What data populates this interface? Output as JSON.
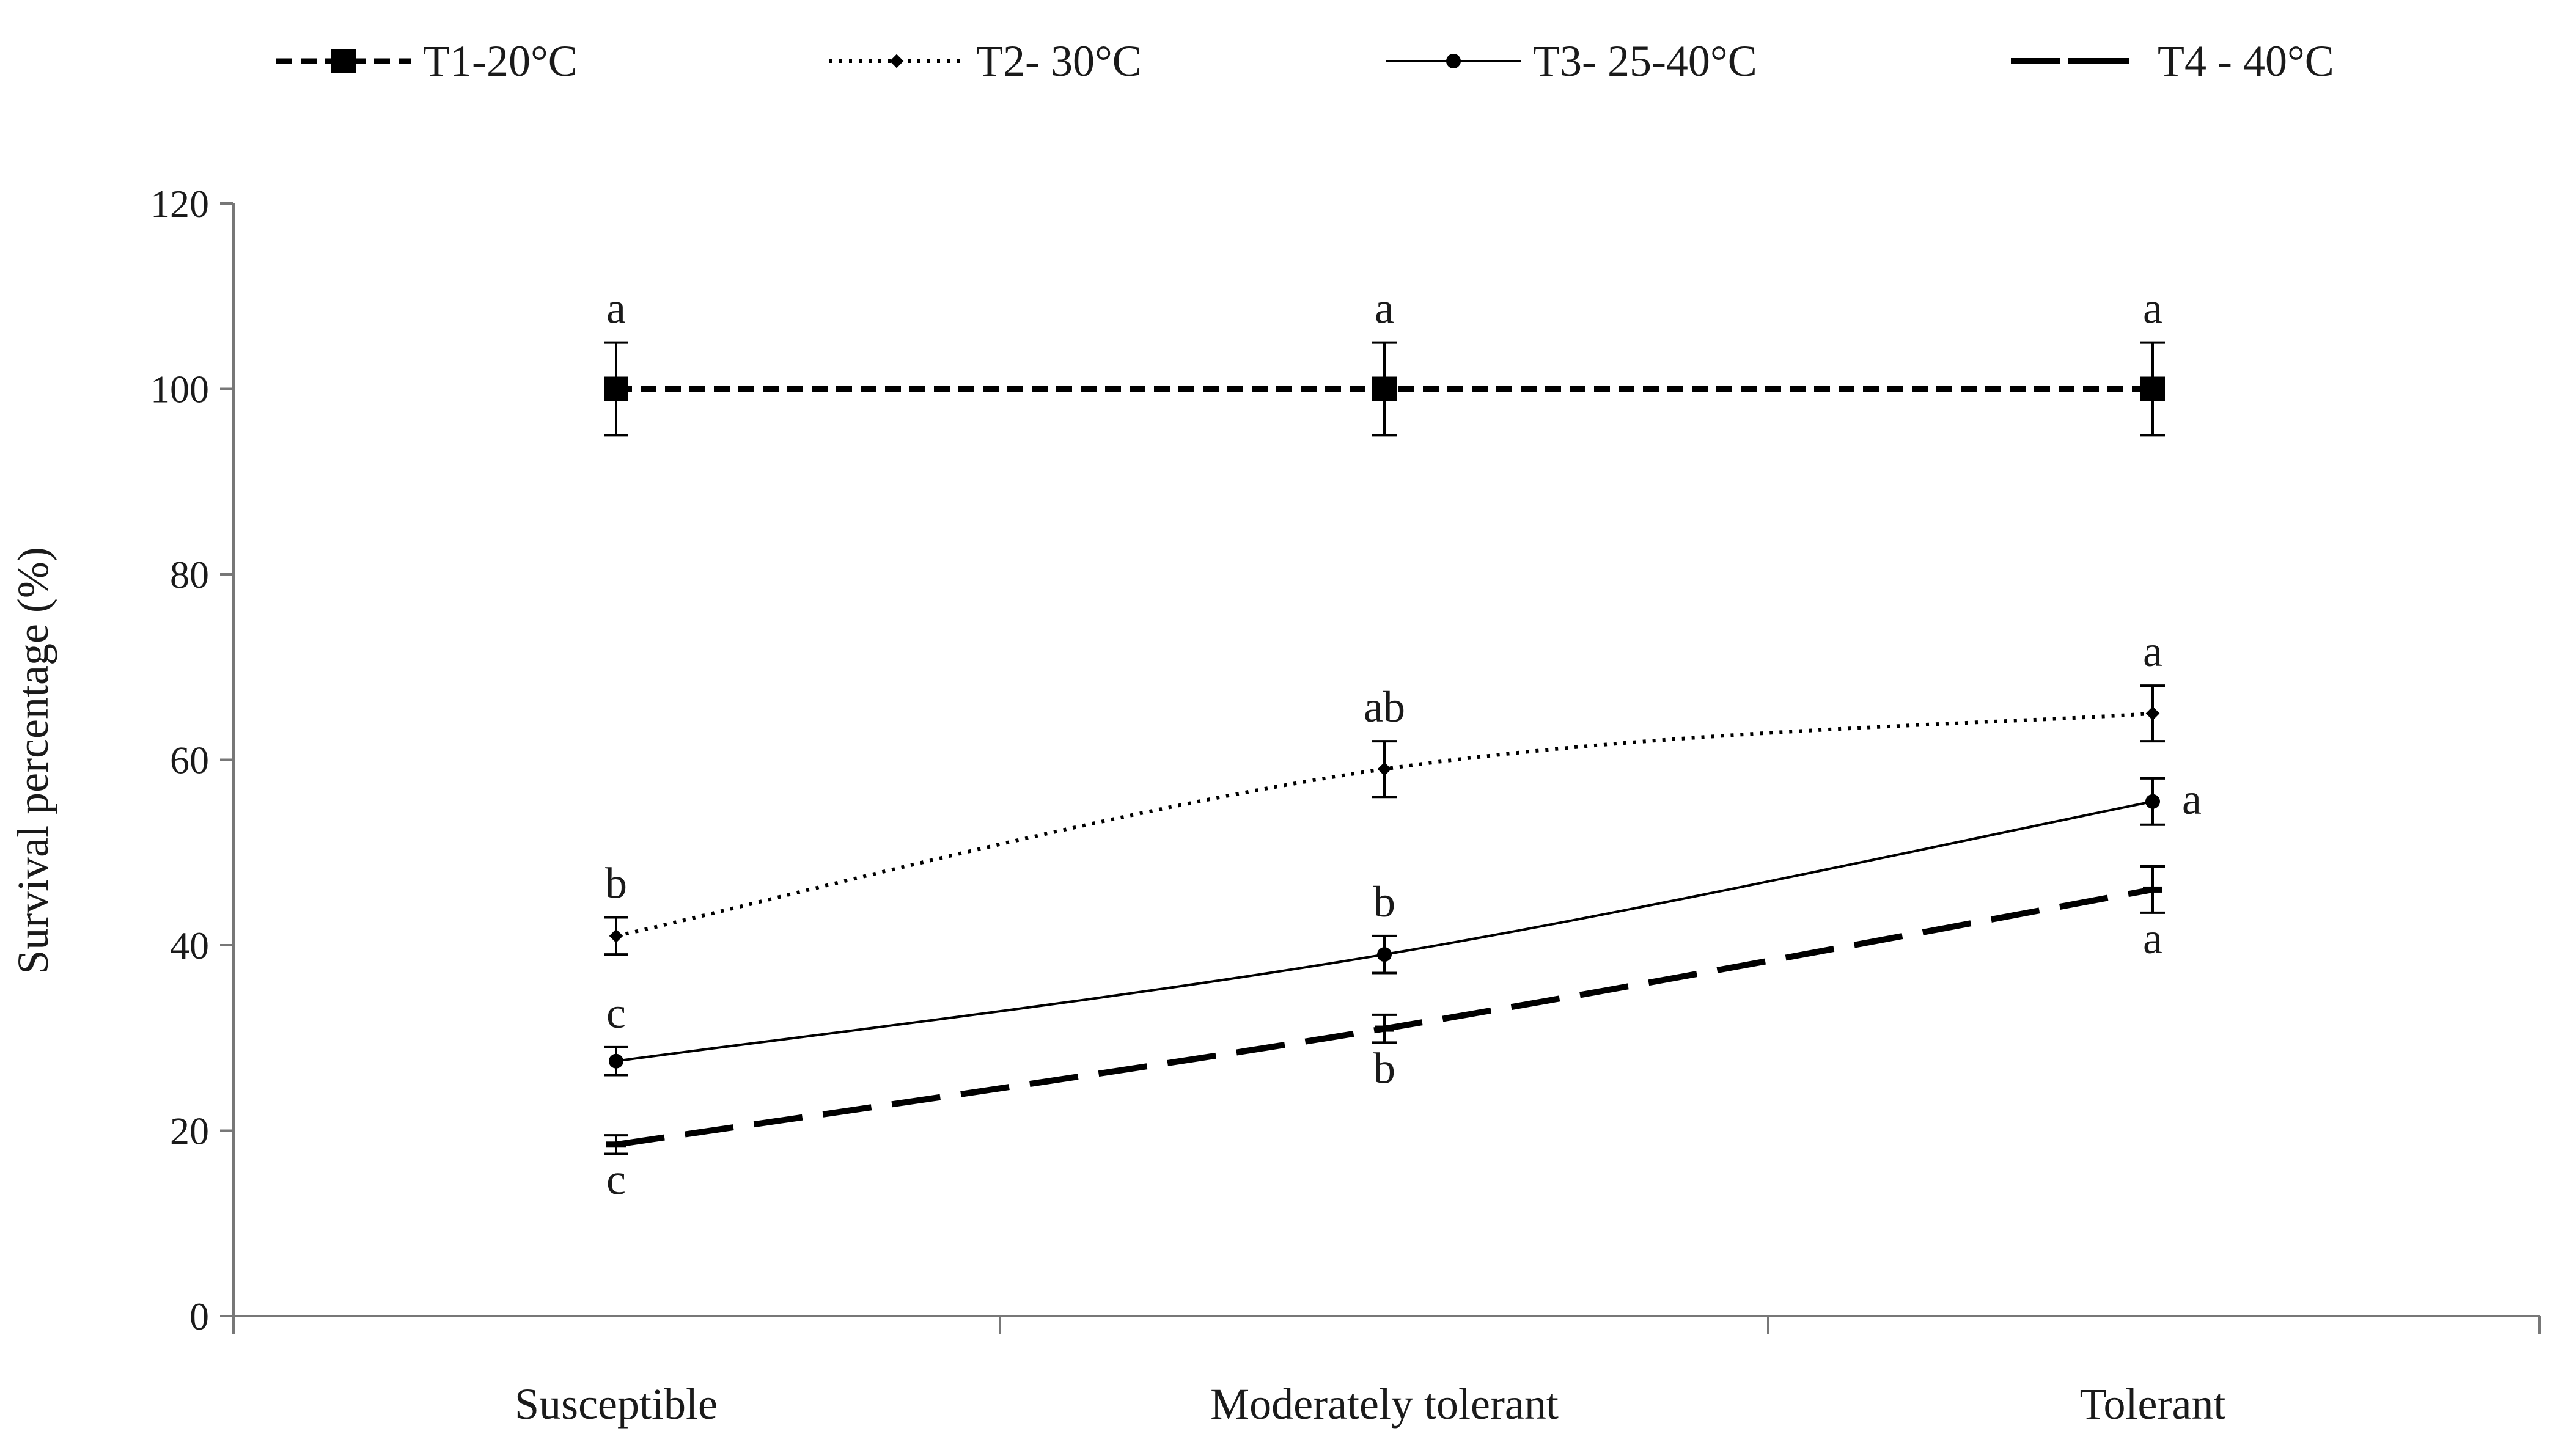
{
  "chart_data": {
    "type": "line",
    "title": "",
    "xlabel": "",
    "ylabel": "Survival percentage (%)",
    "ylim": [
      0,
      120
    ],
    "yticks": [
      0,
      20,
      40,
      60,
      80,
      100,
      120
    ],
    "categories": [
      "Susceptible",
      "Moderately tolerant",
      "Tolerant"
    ],
    "legend_position": "top",
    "grid": false,
    "series": [
      {
        "name": "T1-20°C",
        "line_style": "short-dash",
        "marker": "square",
        "values": [
          100,
          100,
          100
        ],
        "errors": [
          5,
          5,
          5
        ],
        "significance": [
          "a",
          "a",
          "a"
        ],
        "label_positions": [
          "above",
          "above",
          "above"
        ]
      },
      {
        "name": "T2- 30°C",
        "line_style": "dotted",
        "marker": "small-diamond",
        "values": [
          41,
          59,
          65
        ],
        "errors": [
          2,
          3,
          3
        ],
        "significance": [
          "b",
          "ab",
          "a"
        ],
        "label_positions": [
          "above",
          "above",
          "above"
        ]
      },
      {
        "name": "T3- 25-40°C",
        "line_style": "solid",
        "marker": "circle",
        "values": [
          27.5,
          39,
          55.5
        ],
        "errors": [
          1.5,
          2,
          2.5
        ],
        "significance": [
          "c",
          "b",
          "a"
        ],
        "label_positions": [
          "above",
          "above",
          "right"
        ]
      },
      {
        "name": "T4 - 40°C",
        "line_style": "long-dash",
        "marker": "dash",
        "values": [
          18.5,
          31,
          46
        ],
        "errors": [
          1,
          1.5,
          2.5
        ],
        "significance": [
          "c",
          "b",
          "a"
        ],
        "label_positions": [
          "below",
          "below",
          "below"
        ]
      }
    ]
  }
}
